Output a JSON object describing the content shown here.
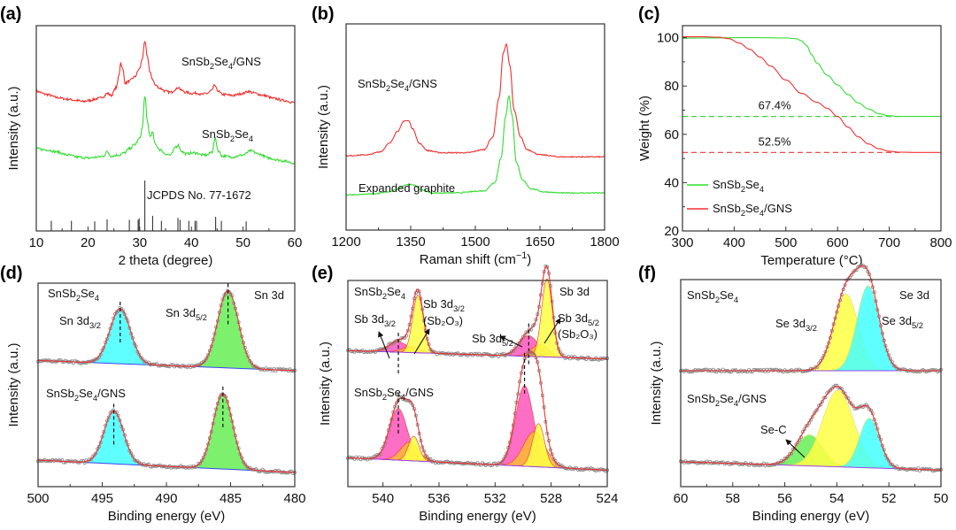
{
  "figure": {
    "panels": [
      "(a)",
      "(b)",
      "(c)",
      "(d)",
      "(e)",
      "(f)"
    ]
  },
  "colors": {
    "red": "#f03030",
    "green": "#33dd33",
    "cyan": "#44ffff",
    "lightgreen": "#66ee55",
    "magenta": "#ff55bb",
    "yellow": "#ffff44",
    "orange": "#ffbb33",
    "seafoam": "#55eebb",
    "data_points": "#888888",
    "baseline_blue": "#3344ee",
    "baseline_purple": "#9944ee"
  },
  "chart_data": [
    {
      "id": "a",
      "panel_label": "(a)",
      "type": "line",
      "title": "",
      "xlabel": "2 theta (degree)",
      "ylabel": "Intensity (a.u.)",
      "xlim": [
        10,
        60
      ],
      "ylim": [
        0,
        10
      ],
      "xticks": [
        10,
        20,
        30,
        40,
        50,
        60
      ],
      "xticklabels": [
        "10",
        "20",
        "30",
        "40",
        "50",
        "60"
      ],
      "grid": false,
      "series": [
        {
          "name": "SnSb2Se4/GNS",
          "label_main": "SnSb",
          "label_sub1": "2",
          "label_mid": "Se",
          "label_sub2": "4",
          "label_tail": "/GNS",
          "color": "red",
          "x": [
            10,
            12,
            14,
            16,
            18,
            19,
            20,
            22,
            23,
            23.7,
            24.5,
            25.5,
            26,
            26.3,
            26.7,
            27.2,
            28,
            29,
            30,
            30.5,
            31,
            31.5,
            32,
            32.5,
            33,
            34,
            35,
            36,
            37,
            37.5,
            38,
            39,
            40,
            41,
            42,
            43,
            44,
            44.5,
            45,
            46,
            48,
            50,
            51,
            52,
            54,
            56,
            58,
            60
          ],
          "y": [
            6.8,
            6.65,
            6.5,
            6.42,
            6.35,
            6.3,
            6.35,
            6.45,
            6.55,
            6.7,
            6.6,
            7.0,
            7.6,
            8.2,
            7.9,
            7.2,
            7.3,
            7.5,
            7.9,
            8.4,
            9.2,
            8.5,
            7.7,
            7.4,
            7.1,
            6.95,
            6.8,
            6.75,
            6.9,
            7.0,
            6.85,
            6.75,
            6.7,
            6.72,
            6.65,
            6.7,
            6.85,
            7.1,
            6.85,
            6.65,
            6.6,
            6.7,
            6.8,
            6.72,
            6.6,
            6.45,
            6.35,
            6.25
          ]
        },
        {
          "name": "SnSb2Se4",
          "label_main": "SnSb",
          "label_sub1": "2",
          "label_mid": "Se",
          "label_sub2": "4",
          "label_tail": "",
          "color": "green",
          "x": [
            10,
            12,
            14,
            16,
            18,
            20,
            22,
            23,
            23.7,
            24.5,
            26,
            27,
            28,
            29,
            30,
            30.5,
            31,
            31.5,
            32,
            32.5,
            33,
            34,
            35,
            36,
            37,
            37.5,
            38,
            39,
            40,
            41,
            42,
            43,
            44,
            44.6,
            45.2,
            46,
            48,
            50,
            51.5,
            53,
            55,
            57,
            58,
            60
          ],
          "y": [
            4.0,
            3.95,
            3.85,
            3.7,
            3.6,
            3.55,
            3.6,
            3.65,
            3.85,
            3.65,
            3.7,
            3.8,
            4.0,
            4.2,
            4.5,
            5.0,
            6.6,
            5.3,
            4.6,
            4.8,
            4.2,
            3.95,
            3.75,
            3.7,
            4.1,
            4.2,
            3.9,
            3.75,
            3.8,
            3.8,
            3.7,
            3.7,
            3.85,
            4.5,
            3.9,
            3.65,
            3.6,
            3.7,
            3.9,
            3.75,
            3.55,
            3.45,
            3.4,
            3.3
          ]
        }
      ],
      "reference": {
        "name": "JCPDS No. 77-1672",
        "positions": [
          12.9,
          16.8,
          21.3,
          23.7,
          28.0,
          29.7,
          29.9,
          31.0,
          32.5,
          34.2,
          37.4,
          37.8,
          39.5,
          40.7,
          41.0,
          44.7,
          45.8,
          50.6
        ],
        "intensities": [
          0.2,
          0.2,
          0.19,
          0.23,
          0.22,
          0.22,
          0.25,
          1.0,
          0.3,
          0.2,
          0.26,
          0.22,
          0.2,
          0.2,
          0.2,
          0.28,
          0.2,
          0.19
        ]
      }
    },
    {
      "id": "b",
      "panel_label": "(b)",
      "type": "line",
      "title": "",
      "xlabel": "Raman shift (cm",
      "xlabel_sup": "−1",
      "xlabel_tail": ")",
      "ylabel": "Intensity (a.u.)",
      "xlim": [
        1200,
        1800
      ],
      "ylim": [
        0,
        10
      ],
      "xticks": [
        1200,
        1350,
        1500,
        1650,
        1800
      ],
      "xticklabels": [
        "1200",
        "1350",
        "1500",
        "1650",
        "1800"
      ],
      "grid": false,
      "series": [
        {
          "name": "SnSb2Se4/GNS",
          "label_main": "SnSb",
          "label_sub1": "2",
          "label_mid": "Se",
          "label_sub2": "4",
          "label_tail": "/GNS",
          "color": "red",
          "x": [
            1200,
            1250,
            1280,
            1300,
            1320,
            1335,
            1345,
            1355,
            1370,
            1390,
            1420,
            1480,
            1520,
            1540,
            1555,
            1565,
            1572,
            1580,
            1590,
            1605,
            1620,
            1650,
            1700,
            1750,
            1800
          ],
          "y": [
            3.6,
            3.65,
            3.8,
            4.2,
            4.8,
            5.3,
            5.3,
            4.9,
            4.2,
            3.85,
            3.75,
            3.75,
            3.9,
            4.5,
            6.4,
            8.6,
            9.0,
            8.0,
            5.8,
            4.5,
            3.9,
            3.65,
            3.55,
            3.55,
            3.55
          ]
        },
        {
          "name": "Expanded graphite",
          "label_main": "Expanded graphite",
          "label_sub1": "",
          "label_mid": "",
          "label_sub2": "",
          "label_tail": "",
          "color": "green",
          "x": [
            1200,
            1260,
            1300,
            1320,
            1340,
            1355,
            1375,
            1400,
            1450,
            1520,
            1545,
            1560,
            1570,
            1578,
            1585,
            1595,
            1610,
            1630,
            1660,
            1700,
            1800
          ],
          "y": [
            1.7,
            1.75,
            1.85,
            2.0,
            2.2,
            2.2,
            1.95,
            1.8,
            1.8,
            1.9,
            2.3,
            3.5,
            5.5,
            6.5,
            5.6,
            3.3,
            2.4,
            2.0,
            1.85,
            1.8,
            1.8
          ]
        }
      ]
    },
    {
      "id": "c",
      "panel_label": "(c)",
      "type": "line",
      "title": "",
      "xlabel": "Temperature (°C)",
      "ylabel": "Weight (%)",
      "xlim": [
        300,
        800
      ],
      "ylim": [
        20,
        105
      ],
      "xticks": [
        300,
        400,
        500,
        600,
        700,
        800
      ],
      "xticklabels": [
        "300",
        "400",
        "500",
        "600",
        "700",
        "800"
      ],
      "yticks": [
        20,
        40,
        60,
        80,
        100
      ],
      "yticklabels": [
        "20",
        "40",
        "60",
        "80",
        "100"
      ],
      "grid": false,
      "legend_position": "bottom-left",
      "series": [
        {
          "name": "SnSb2Se4",
          "label_main": "SnSb",
          "label_sub1": "2",
          "label_mid": "Se",
          "label_sub2": "4",
          "label_tail": "",
          "color": "green",
          "x": [
            300,
            350,
            400,
            450,
            500,
            520,
            530,
            540,
            550,
            560,
            580,
            600,
            620,
            640,
            660,
            680,
            700,
            720,
            750,
            800
          ],
          "y": [
            99.8,
            99.9,
            100.0,
            100.0,
            99.9,
            99.6,
            98.8,
            96.8,
            93.0,
            89.5,
            84.5,
            80.5,
            76.5,
            73.0,
            70.5,
            68.5,
            67.7,
            67.4,
            67.4,
            67.4
          ]
        },
        {
          "name": "SnSb2Se4/GNS",
          "label_main": "SnSb",
          "label_sub1": "2",
          "label_mid": "Se",
          "label_sub2": "4",
          "label_tail": "/GNS",
          "color": "red",
          "x": [
            300,
            340,
            370,
            390,
            410,
            430,
            450,
            470,
            500,
            530,
            560,
            580,
            600,
            620,
            640,
            660,
            680,
            700,
            720,
            750,
            800
          ],
          "y": [
            100.4,
            100.4,
            100.2,
            99.6,
            97.8,
            95.2,
            92.0,
            88.3,
            82.5,
            77.0,
            73.3,
            70.8,
            67.4,
            63.0,
            59.0,
            56.0,
            54.0,
            53.0,
            52.6,
            52.5,
            52.5
          ]
        }
      ],
      "reference_lines": [
        {
          "label": "67.4%",
          "value": 67.4,
          "color": "green",
          "x_range": [
            300,
            725
          ]
        },
        {
          "label": "52.5%",
          "value": 52.5,
          "color": "red",
          "x_range": [
            300,
            725
          ]
        }
      ]
    },
    {
      "id": "d",
      "panel_label": "(d)",
      "type": "line",
      "title": "",
      "xlabel": "Binding energy (eV)",
      "ylabel": "Intensity (a.u.)",
      "xlim": [
        500,
        480
      ],
      "ylim": [
        0,
        10
      ],
      "xticks": [
        500,
        495,
        490,
        485,
        480
      ],
      "xticklabels": [
        "500",
        "495",
        "490",
        "485",
        "480"
      ],
      "grid": false,
      "region_label": "Sn 3d",
      "spectra": [
        {
          "sample": "SnSb2Se4",
          "label_main": "SnSb",
          "label_sub1": "2",
          "label_mid": "Se",
          "label_sub2": "4",
          "label_tail": "",
          "baseline": [
            6.2,
            5.7
          ],
          "peaks": [
            {
              "center": 493.6,
              "height": 2.7,
              "fwhm": 1.9,
              "color": "cyan",
              "label": "Sn 3d",
              "label_sub": "3/2"
            },
            {
              "center": 485.2,
              "height": 3.8,
              "fwhm": 1.9,
              "color": "lightgreen",
              "label": "Sn 3d",
              "label_sub": "5/2"
            }
          ],
          "dashed_at": [
            493.6,
            485.2
          ]
        },
        {
          "sample": "SnSb2Se4/GNS",
          "label_main": "SnSb",
          "label_sub1": "2",
          "label_mid": "Se",
          "label_sub2": "4",
          "label_tail": "/GNS",
          "baseline": [
            1.3,
            0.7
          ],
          "peaks": [
            {
              "center": 494.1,
              "height": 2.6,
              "fwhm": 1.8,
              "color": "cyan",
              "label": "",
              "label_sub": ""
            },
            {
              "center": 485.6,
              "height": 3.7,
              "fwhm": 1.8,
              "color": "lightgreen",
              "label": "",
              "label_sub": ""
            }
          ],
          "dashed_at": [
            494.1,
            485.6
          ]
        }
      ]
    },
    {
      "id": "e",
      "panel_label": "(e)",
      "type": "line",
      "title": "",
      "xlabel": "Binding energy (eV)",
      "ylabel": "Intensity (a.u.)",
      "xlim": [
        542.5,
        524
      ],
      "ylim": [
        0,
        10
      ],
      "xticks": [
        540,
        536,
        532,
        528,
        524
      ],
      "xticklabels": [
        "540",
        "536",
        "532",
        "528",
        "524"
      ],
      "grid": false,
      "region_label": "Sb 3d",
      "spectra": [
        {
          "sample": "SnSb2Se4",
          "label_main": "SnSb",
          "label_sub1": "2",
          "label_mid": "Se",
          "label_sub2": "4",
          "label_tail": "",
          "baseline": [
            6.6,
            6.2
          ],
          "peaks": [
            {
              "center": 538.9,
              "height": 0.5,
              "fwhm": 1.6,
              "color": "magenta"
            },
            {
              "center": 538.0,
              "height": 0.3,
              "fwhm": 1.4,
              "color": "orange"
            },
            {
              "center": 537.5,
              "height": 2.8,
              "fwhm": 0.9,
              "color": "yellow"
            },
            {
              "center": 529.6,
              "height": 1.0,
              "fwhm": 1.6,
              "color": "magenta"
            },
            {
              "center": 528.8,
              "height": 0.6,
              "fwhm": 1.4,
              "color": "orange"
            },
            {
              "center": 528.3,
              "height": 3.8,
              "fwhm": 0.9,
              "color": "yellow"
            }
          ],
          "dashed_at": [
            538.9,
            529.6
          ],
          "annotations": [
            {
              "text": "Sb 3d",
              "sub": "3/2",
              "text2": ""
            },
            {
              "text": "Sb 3d",
              "sub": "3/2",
              "text2": "(Sb₂O₃)"
            },
            {
              "text": "Sb 3d",
              "sub": "5/2",
              "text2": ""
            },
            {
              "text": "Sb 3d",
              "sub": "5/2",
              "text2": "(Sb₂O₃)"
            }
          ]
        },
        {
          "sample": "SnSb2Se4/GNS",
          "label_main": "SnSb",
          "label_sub1": "2",
          "label_mid": "Se",
          "label_sub2": "4",
          "label_tail": "/GNS",
          "baseline": [
            1.4,
            0.8
          ],
          "peaks": [
            {
              "center": 538.9,
              "height": 2.5,
              "fwhm": 1.5,
              "color": "magenta"
            },
            {
              "center": 538.1,
              "height": 0.9,
              "fwhm": 1.5,
              "color": "orange"
            },
            {
              "center": 537.8,
              "height": 1.2,
              "fwhm": 0.9,
              "color": "yellow"
            },
            {
              "center": 529.9,
              "height": 3.9,
              "fwhm": 1.5,
              "color": "magenta"
            },
            {
              "center": 529.2,
              "height": 1.7,
              "fwhm": 1.8,
              "color": "orange"
            },
            {
              "center": 528.9,
              "height": 2.1,
              "fwhm": 1.0,
              "color": "yellow"
            }
          ],
          "dashed_at": [
            538.9,
            529.9
          ]
        }
      ]
    },
    {
      "id": "f",
      "panel_label": "(f)",
      "type": "line",
      "title": "",
      "xlabel": "Binding energy (eV)",
      "ylabel": "Intensity (a.u.)",
      "xlim": [
        60,
        50
      ],
      "ylim": [
        0,
        10
      ],
      "xticks": [
        60,
        58,
        56,
        54,
        52,
        50
      ],
      "xticklabels": [
        "60",
        "58",
        "56",
        "54",
        "52",
        "50"
      ],
      "grid": false,
      "region_label": "Se 3d",
      "spectra": [
        {
          "sample": "SnSb2Se4",
          "label_main": "SnSb",
          "label_sub1": "2",
          "label_mid": "Se",
          "label_sub2": "4",
          "label_tail": "",
          "baseline": [
            5.6,
            5.6
          ],
          "peaks": [
            {
              "center": 53.65,
              "height": 3.7,
              "fwhm": 1.1,
              "color": "yellow",
              "label": "Se 3d",
              "label_sub": "3/2"
            },
            {
              "center": 52.8,
              "height": 4.1,
              "fwhm": 1.0,
              "color": "cyan",
              "label": "Se 3d",
              "label_sub": "5/2"
            }
          ]
        },
        {
          "sample": "SnSb2Se4/GNS",
          "label_main": "SnSb",
          "label_sub1": "2",
          "label_mid": "Se",
          "label_sub2": "4",
          "label_tail": "/GNS",
          "baseline": [
            1.2,
            0.8
          ],
          "peaks": [
            {
              "center": 55.05,
              "height": 1.5,
              "fwhm": 1.2,
              "color": "lightgreen",
              "label": "Se-C",
              "label_sub": ""
            },
            {
              "center": 53.95,
              "height": 3.7,
              "fwhm": 1.4,
              "color": "yellow",
              "label": "",
              "label_sub": ""
            },
            {
              "center": 52.75,
              "height": 2.4,
              "fwhm": 0.9,
              "color": "cyan",
              "label": "",
              "label_sub": ""
            }
          ]
        }
      ]
    }
  ]
}
